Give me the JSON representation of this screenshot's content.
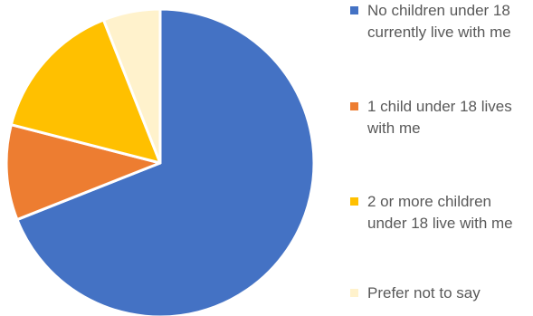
{
  "chart_data": {
    "type": "pie",
    "title": "",
    "legend": "right",
    "start_angle_deg": 0,
    "direction": "clockwise",
    "slices": [
      {
        "label": "No children under 18 currently live with me",
        "value": 69,
        "color": "#4472C4"
      },
      {
        "label": "1 child under 18 lives with me",
        "value": 10,
        "color": "#ED7D31"
      },
      {
        "label": "2 or more children under 18 live with me",
        "value": 15,
        "color": "#FFC000"
      },
      {
        "label": "Prefer not to say",
        "value": 6,
        "color": "#FFF2CC"
      }
    ]
  }
}
